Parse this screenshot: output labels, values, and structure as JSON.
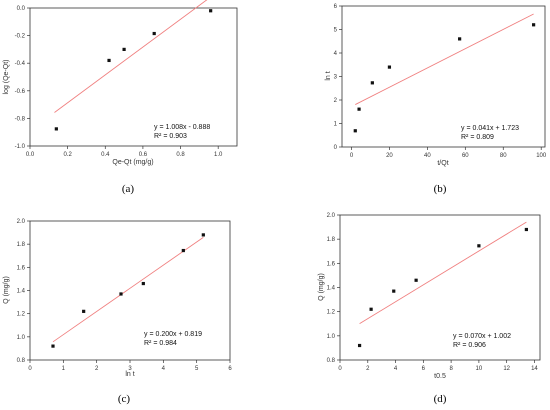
{
  "chart_data": [
    {
      "type": "scatter",
      "panel_label": "(a)",
      "xlabel": "Qe-Qt (mg/g)",
      "ylabel": "log (Qe-Qt)",
      "xlim": [
        0.0,
        1.1
      ],
      "ylim": [
        -1.0,
        0.0
      ],
      "xticks": [
        0.0,
        0.2,
        0.4,
        0.6,
        0.8,
        1.0
      ],
      "yticks": [
        -1.0,
        -0.8,
        -0.6,
        -0.4,
        -0.2,
        0.0
      ],
      "xtick_labels": [
        "0.0",
        "0.2",
        "0.4",
        "0.6",
        "0.8",
        "1.0"
      ],
      "ytick_labels": [
        "-1.0",
        "-0.8",
        "-0.6",
        "-0.4",
        "-0.2",
        "0.0"
      ],
      "points": [
        {
          "x": 0.14,
          "y": -0.876
        },
        {
          "x": 0.42,
          "y": -0.38
        },
        {
          "x": 0.5,
          "y": -0.3
        },
        {
          "x": 0.66,
          "y": -0.185
        },
        {
          "x": 0.96,
          "y": -0.02
        }
      ],
      "fit": {
        "slope": 1.008,
        "intercept": -0.888,
        "x_range": [
          0.13,
          0.97
        ]
      },
      "equation": "y = 1.008x - 0.888",
      "r2": "R² = 0.903",
      "marker_color": "#111111",
      "fit_color": "#f08080"
    },
    {
      "type": "scatter",
      "panel_label": "(b)",
      "xlabel": "t/Qt",
      "ylabel": "ln t",
      "xlim": [
        -5,
        102
      ],
      "ylim": [
        0,
        6
      ],
      "xticks": [
        0,
        20,
        40,
        60,
        80,
        100
      ],
      "yticks": [
        0,
        1,
        2,
        3,
        4,
        5,
        6
      ],
      "xtick_labels": [
        "0",
        "20",
        "40",
        "60",
        "80",
        "100"
      ],
      "ytick_labels": [
        "0",
        "1",
        "2",
        "3",
        "4",
        "5",
        "6"
      ],
      "points": [
        {
          "x": 2,
          "y": 0.69
        },
        {
          "x": 4,
          "y": 1.61
        },
        {
          "x": 11,
          "y": 2.73
        },
        {
          "x": 20,
          "y": 3.4
        },
        {
          "x": 57,
          "y": 4.6
        },
        {
          "x": 96,
          "y": 5.2
        }
      ],
      "fit": {
        "slope": 0.041,
        "intercept": 1.723,
        "x_range": [
          2,
          96
        ]
      },
      "equation": "y = 0.041x + 1.723",
      "r2": "R² = 0.809",
      "marker_color": "#111111",
      "fit_color": "#f08080"
    },
    {
      "type": "scatter",
      "panel_label": "(c)",
      "xlabel": "ln t",
      "ylabel": "Q (mg/g)",
      "xlim": [
        0,
        6
      ],
      "ylim": [
        0.8,
        2.0
      ],
      "xticks": [
        0,
        1,
        2,
        3,
        4,
        5,
        6
      ],
      "yticks": [
        0.8,
        1.0,
        1.2,
        1.4,
        1.6,
        1.8,
        2.0
      ],
      "xtick_labels": [
        "0",
        "1",
        "2",
        "3",
        "4",
        "5",
        "6"
      ],
      "ytick_labels": [
        "0.8",
        "1.0",
        "1.2",
        "1.4",
        "1.6",
        "1.8",
        "2.0"
      ],
      "points": [
        {
          "x": 0.69,
          "y": 0.92
        },
        {
          "x": 1.61,
          "y": 1.22
        },
        {
          "x": 2.73,
          "y": 1.37
        },
        {
          "x": 3.4,
          "y": 1.46
        },
        {
          "x": 4.6,
          "y": 1.745
        },
        {
          "x": 5.2,
          "y": 1.88
        }
      ],
      "fit": {
        "slope": 0.2,
        "intercept": 0.819,
        "x_range": [
          0.69,
          5.2
        ]
      },
      "equation": "y = 0.200x + 0.819",
      "r2": "R² = 0.984",
      "marker_color": "#111111",
      "fit_color": "#f08080"
    },
    {
      "type": "scatter",
      "panel_label": "(d)",
      "xlabel": "t0.5",
      "ylabel": "Q (mg/g)",
      "xlim": [
        0,
        14.4
      ],
      "ylim": [
        0.8,
        2.0
      ],
      "xticks": [
        0,
        2,
        4,
        6,
        8,
        10,
        12,
        14
      ],
      "yticks": [
        0.8,
        1.0,
        1.2,
        1.4,
        1.6,
        1.8,
        2.0
      ],
      "xtick_labels": [
        "0",
        "2",
        "4",
        "6",
        "8",
        "10",
        "12",
        "14"
      ],
      "ytick_labels": [
        "0.8",
        "1.0",
        "1.2",
        "1.4",
        "1.6",
        "1.8",
        "2.0"
      ],
      "points": [
        {
          "x": 1.41,
          "y": 0.92
        },
        {
          "x": 2.24,
          "y": 1.22
        },
        {
          "x": 3.87,
          "y": 1.37
        },
        {
          "x": 5.48,
          "y": 1.46
        },
        {
          "x": 10.0,
          "y": 1.745
        },
        {
          "x": 13.42,
          "y": 1.88
        }
      ],
      "fit": {
        "slope": 0.07,
        "intercept": 1.002,
        "x_range": [
          1.41,
          13.42
        ]
      },
      "equation": "y = 0.070x + 1.002",
      "r2": "R² = 0.906",
      "marker_color": "#111111",
      "fit_color": "#f08080"
    }
  ]
}
